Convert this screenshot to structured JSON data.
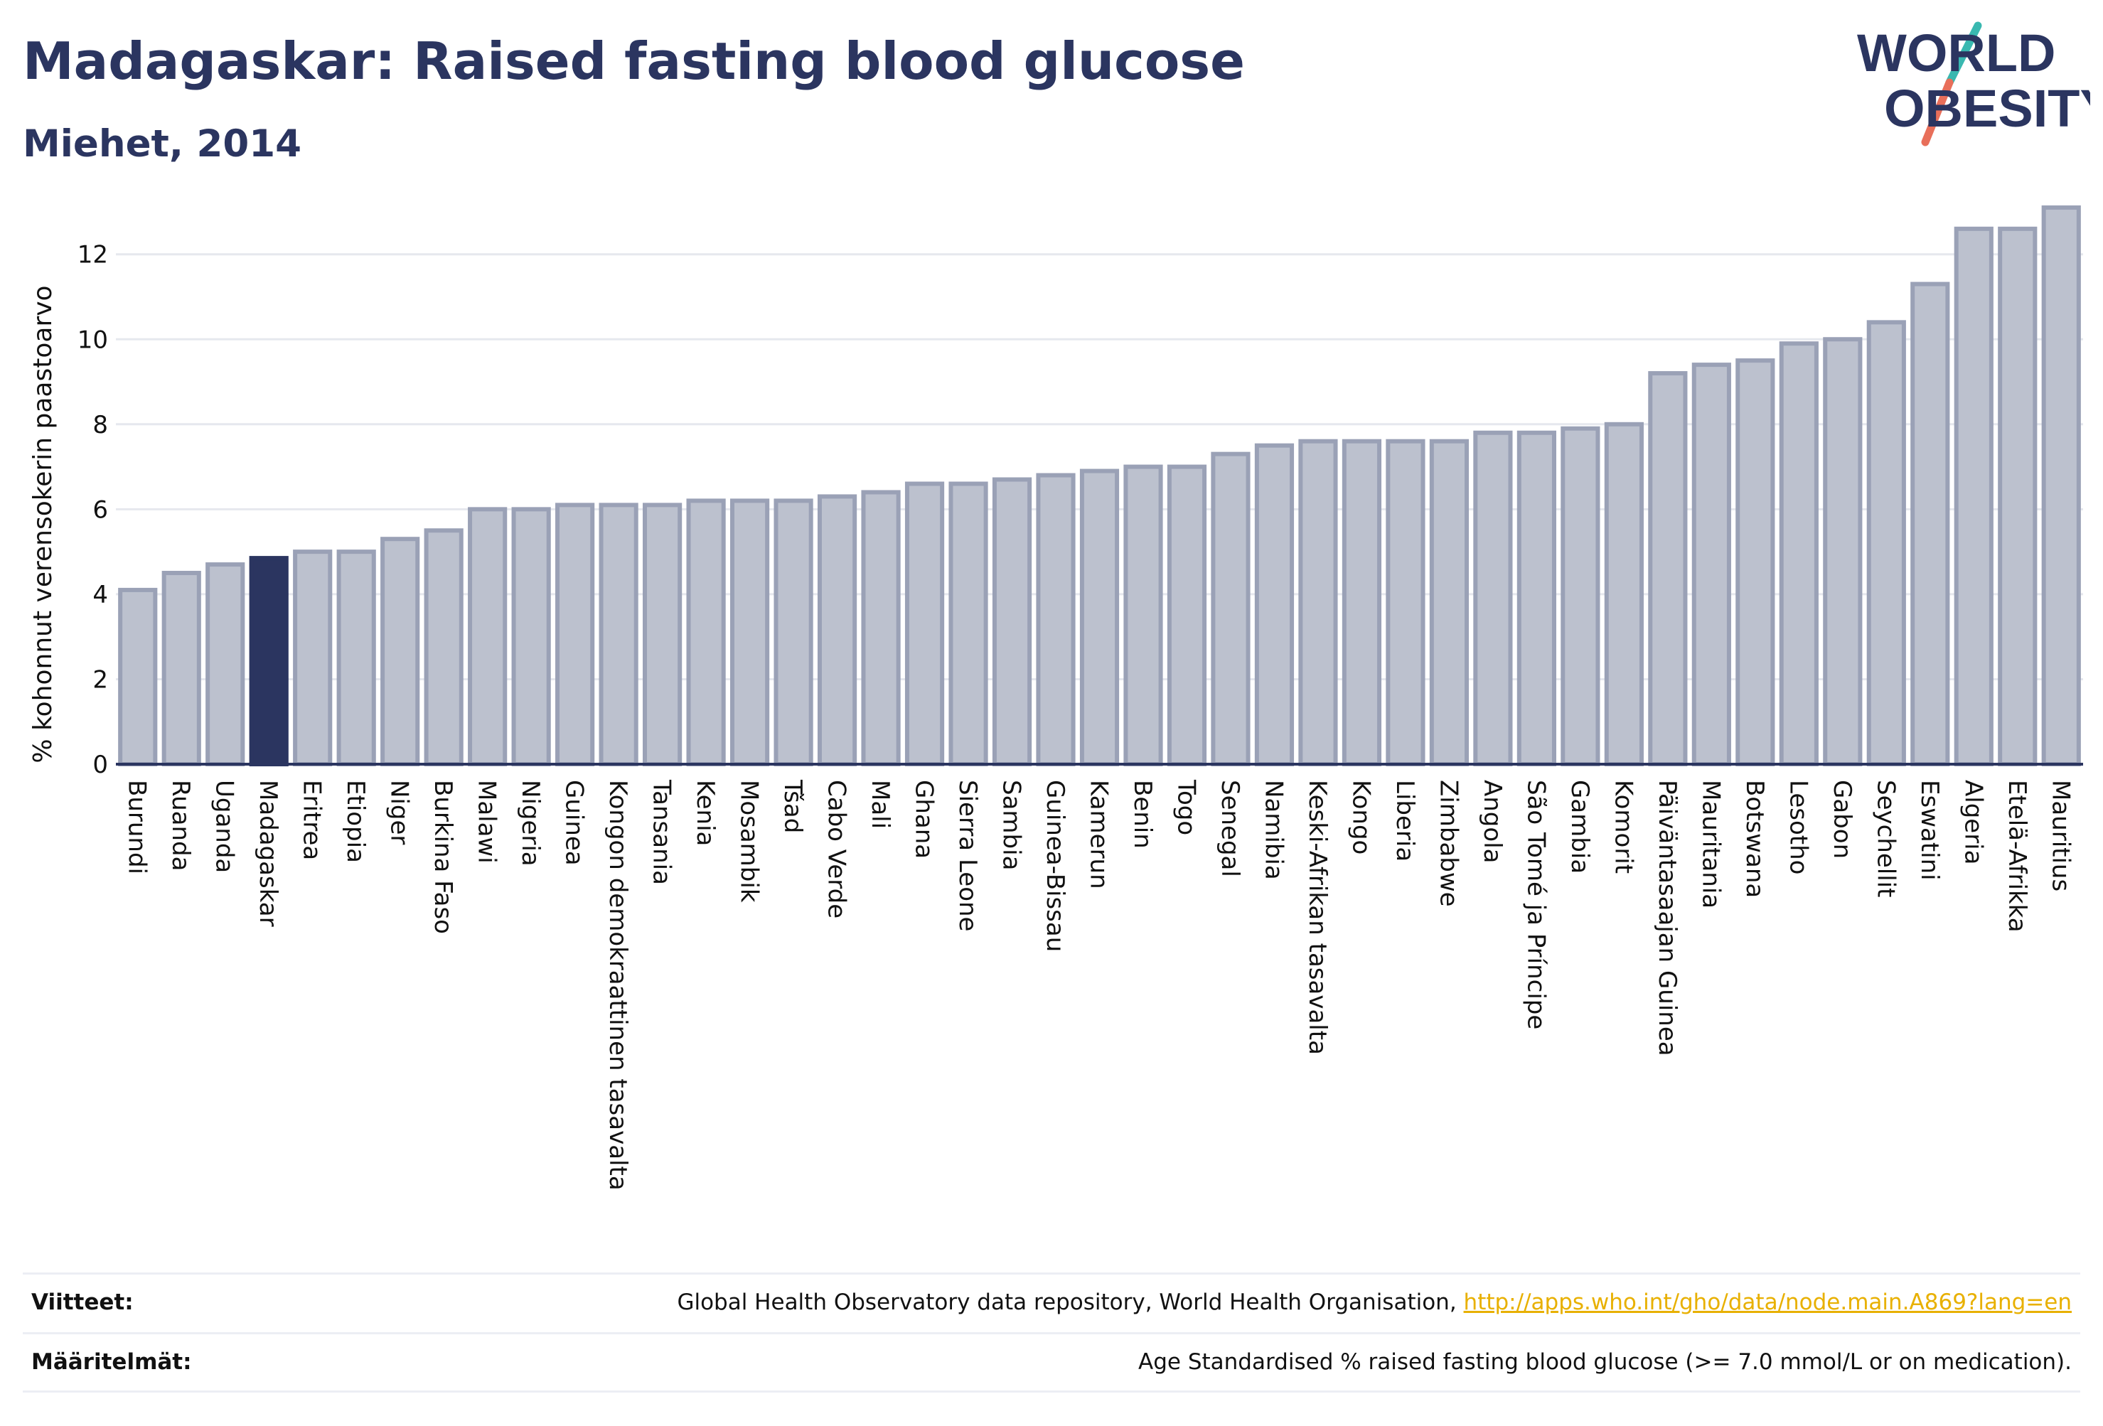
{
  "header": {
    "title": "Madagaskar: Raised fasting blood glucose",
    "subtitle": "Miehet, 2014"
  },
  "logo": {
    "line1": "WORLD",
    "line2": "OBESITY",
    "colors": {
      "text": "#2b3560",
      "slash_teal": "#39b8b0",
      "slash_coral": "#e86f5a"
    }
  },
  "chart_data": {
    "type": "bar",
    "title": "Madagaskar: Raised fasting blood glucose",
    "subtitle": "Miehet, 2014",
    "xlabel": "",
    "ylabel": "% kohonnut verensokerin paastoarvo",
    "ylim": [
      0,
      13.3
    ],
    "yticks": [
      0,
      2,
      4,
      6,
      8,
      10,
      12
    ],
    "grid": true,
    "legend": "none",
    "highlight": "Madagaskar",
    "colors": {
      "bar_fill": "#bcc1ce",
      "bar_stroke": "#9aa1b6",
      "highlight_fill": "#2b3560",
      "gridline": "#e6e8ee",
      "axis": "#2b3560"
    },
    "categories": [
      "Burundi",
      "Ruanda",
      "Uganda",
      "Madagaskar",
      "Eritrea",
      "Etiopia",
      "Niger",
      "Burkina Faso",
      "Malawi",
      "Nigeria",
      "Guinea",
      "Kongon demokraattinen tasavalta",
      "Tansania",
      "Kenia",
      "Mosambik",
      "Tšad",
      "Cabo Verde",
      "Mali",
      "Ghana",
      "Sierra Leone",
      "Sambia",
      "Guinea-Bissau",
      "Kamerun",
      "Benin",
      "Togo",
      "Senegal",
      "Namibia",
      "Keski-Afrikan tasavalta",
      "Kongo",
      "Liberia",
      "Zimbabwe",
      "Angola",
      "São Tomé ja Príncipe",
      "Gambia",
      "Komorit",
      "Päiväntasaajan Guinea",
      "Mauritania",
      "Botswana",
      "Lesotho",
      "Gabon",
      "Seychellit",
      "Eswatini",
      "Algeria",
      "Etelä-Afrikka",
      "Mauritius"
    ],
    "values": [
      4.1,
      4.5,
      4.7,
      4.85,
      5.0,
      5.0,
      5.3,
      5.5,
      6.0,
      6.0,
      6.1,
      6.1,
      6.1,
      6.2,
      6.2,
      6.2,
      6.3,
      6.4,
      6.6,
      6.6,
      6.7,
      6.8,
      6.9,
      7.0,
      7.0,
      7.3,
      7.5,
      7.6,
      7.6,
      7.6,
      7.6,
      7.8,
      7.8,
      7.9,
      8.0,
      9.2,
      9.4,
      9.5,
      9.9,
      10.0,
      10.4,
      11.3,
      12.6,
      12.6,
      13.1
    ]
  },
  "footer": {
    "sources_label": "Viitteet:",
    "sources_text": "Global Health Observatory data repository, World Health Organisation, ",
    "sources_link": "http://apps.who.int/gho/data/node.main.A869?lang=en",
    "definitions_label": "Määritelmät:",
    "definitions_text": "Age Standardised % raised fasting blood glucose (>= 7.0 mmol/L or on medication)."
  }
}
